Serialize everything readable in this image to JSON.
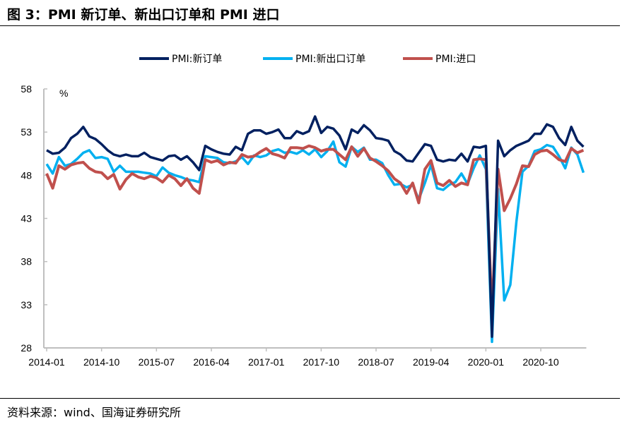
{
  "title": "图 3：PMI 新订单、新出口订单和 PMI 进口",
  "source": "资料来源：wind、国海证券研究所",
  "chart_data": {
    "type": "line",
    "title": "",
    "xlabel": "",
    "ylabel": "%",
    "ylim": [
      28,
      58
    ],
    "yticks": [
      58,
      53,
      48,
      43,
      38,
      33,
      28
    ],
    "xticks": [
      "2014-01",
      "2014-10",
      "2015-07",
      "2016-04",
      "2017-01",
      "2017-10",
      "2018-07",
      "2019-04",
      "2020-01",
      "2020-10"
    ],
    "x_start": "2014-01",
    "x_end": "2021-05",
    "legend_position": "top",
    "grid": false,
    "series": [
      {
        "name": "PMI:新订单",
        "color": "#002060",
        "values": [
          50.9,
          50.5,
          50.6,
          51.2,
          52.3,
          52.8,
          53.6,
          52.5,
          52.2,
          51.6,
          50.9,
          50.4,
          50.2,
          50.4,
          50.2,
          50.2,
          50.6,
          50.1,
          49.9,
          49.7,
          50.2,
          50.3,
          49.8,
          50.2,
          49.5,
          48.6,
          51.4,
          51.0,
          50.7,
          50.5,
          50.4,
          51.3,
          50.9,
          52.8,
          53.2,
          53.2,
          52.8,
          53.0,
          53.3,
          52.3,
          52.3,
          53.1,
          52.8,
          53.1,
          54.8,
          52.9,
          53.6,
          53.4,
          52.6,
          51.0,
          53.3,
          52.9,
          53.8,
          53.2,
          52.3,
          52.2,
          52.0,
          50.8,
          50.4,
          49.7,
          49.6,
          50.6,
          51.6,
          51.4,
          49.8,
          49.6,
          49.8,
          49.7,
          50.5,
          49.6,
          51.3,
          51.2,
          51.4,
          29.3,
          52.0,
          50.2,
          50.9,
          51.4,
          51.7,
          52.0,
          52.8,
          52.8,
          53.9,
          53.6,
          52.3,
          51.5,
          53.6,
          52.0,
          51.3
        ]
      },
      {
        "name": "PMI:新出口订单",
        "color": "#00B0F0",
        "values": [
          49.3,
          48.2,
          50.1,
          49.1,
          49.3,
          49.9,
          50.6,
          50.9,
          50.0,
          50.1,
          49.9,
          48.4,
          49.1,
          48.4,
          48.4,
          48.4,
          48.3,
          48.2,
          47.9,
          48.9,
          48.3,
          48.0,
          47.8,
          47.5,
          47.4,
          47.2,
          50.2,
          50.1,
          50.0,
          49.5,
          49.4,
          49.6,
          50.1,
          49.3,
          50.3,
          50.1,
          50.3,
          50.8,
          51.0,
          50.6,
          50.7,
          50.5,
          50.9,
          50.4,
          51.0,
          50.1,
          50.8,
          51.9,
          49.5,
          49.0,
          51.3,
          50.7,
          51.2,
          49.8,
          49.8,
          49.4,
          48.0,
          46.9,
          47.0,
          46.6,
          46.9,
          45.2,
          47.1,
          49.2,
          46.5,
          46.3,
          46.9,
          47.2,
          48.2,
          47.0,
          48.8,
          50.3,
          48.7,
          28.7,
          46.4,
          33.5,
          35.3,
          42.6,
          48.4,
          49.1,
          50.8,
          51.0,
          51.5,
          51.3,
          50.2,
          48.8,
          51.2,
          50.4,
          48.3
        ]
      },
      {
        "name": "PMI:进口",
        "color": "#C0504D",
        "values": [
          48.2,
          46.5,
          49.1,
          48.7,
          49.2,
          49.4,
          49.5,
          48.8,
          48.4,
          48.3,
          47.6,
          48.1,
          46.4,
          47.5,
          48.2,
          47.8,
          47.6,
          47.9,
          47.7,
          47.2,
          48.0,
          47.6,
          46.8,
          47.6,
          46.5,
          45.9,
          49.8,
          49.5,
          49.7,
          49.2,
          49.5,
          49.4,
          50.4,
          50.1,
          50.2,
          50.7,
          51.1,
          50.5,
          50.3,
          50.0,
          51.2,
          51.2,
          51.1,
          51.4,
          51.2,
          50.8,
          51.0,
          51.0,
          50.4,
          49.8,
          51.3,
          50.2,
          51.1,
          50.0,
          49.6,
          49.1,
          48.5,
          47.6,
          47.1,
          45.9,
          47.1,
          44.8,
          48.7,
          49.7,
          47.1,
          46.8,
          47.4,
          46.7,
          47.1,
          46.9,
          49.8,
          49.9,
          49.8,
          31.9,
          48.7,
          43.9,
          45.3,
          47.0,
          49.1,
          49.0,
          50.4,
          50.8,
          50.9,
          50.4,
          49.8,
          49.6,
          51.1,
          50.6,
          50.9
        ]
      }
    ]
  }
}
